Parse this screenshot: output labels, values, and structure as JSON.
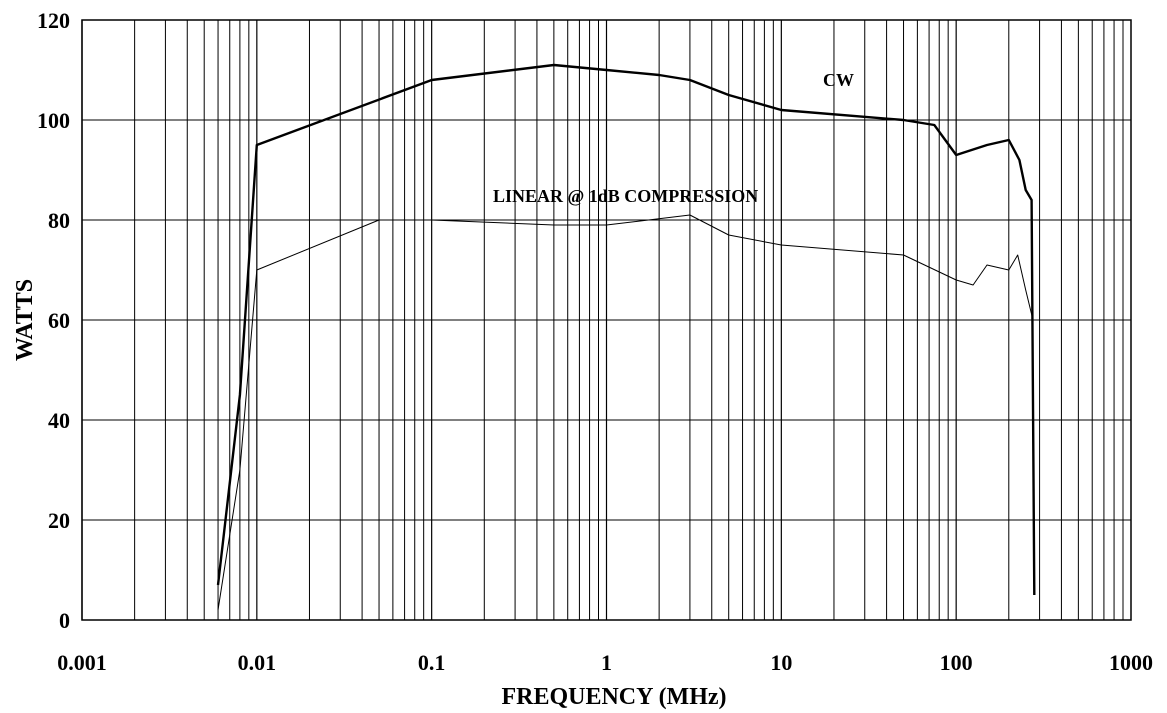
{
  "chart_data": {
    "type": "line",
    "xlabel": "FREQUENCY (MHz)",
    "ylabel": "WATTS",
    "x_scale": "log",
    "xlim": [
      0.001,
      1000
    ],
    "ylim": [
      0,
      120
    ],
    "x_ticks": [
      0.001,
      0.01,
      0.1,
      1,
      10,
      100,
      1000
    ],
    "x_tick_labels": [
      "0.001",
      "0.01",
      "0.1",
      "1",
      "10",
      "100",
      "1000"
    ],
    "y_ticks": [
      0,
      20,
      40,
      60,
      80,
      100,
      120
    ],
    "y_tick_labels": [
      "0",
      "20",
      "40",
      "60",
      "80",
      "100",
      "120"
    ],
    "grid": true,
    "series": [
      {
        "name": "CW",
        "x": [
          0.006,
          0.008,
          0.01,
          0.1,
          0.5,
          1,
          2,
          3,
          5,
          10,
          50,
          75,
          100,
          150,
          200,
          230,
          250,
          270,
          280
        ],
        "y": [
          7,
          45,
          95,
          108,
          111,
          110,
          109,
          108,
          105,
          102,
          100,
          99,
          93,
          95,
          96,
          92,
          86,
          84,
          5
        ]
      },
      {
        "name": "LINEAR @ 1dB COMPRESSION",
        "x": [
          0.006,
          0.008,
          0.01,
          0.05,
          0.1,
          0.5,
          1,
          3,
          5,
          10,
          50,
          100,
          125,
          150,
          200,
          225,
          250,
          275
        ],
        "y": [
          2,
          30,
          70,
          80,
          80,
          79,
          79,
          81,
          77,
          75,
          73,
          68,
          67,
          71,
          70,
          73,
          66,
          60
        ]
      }
    ]
  }
}
